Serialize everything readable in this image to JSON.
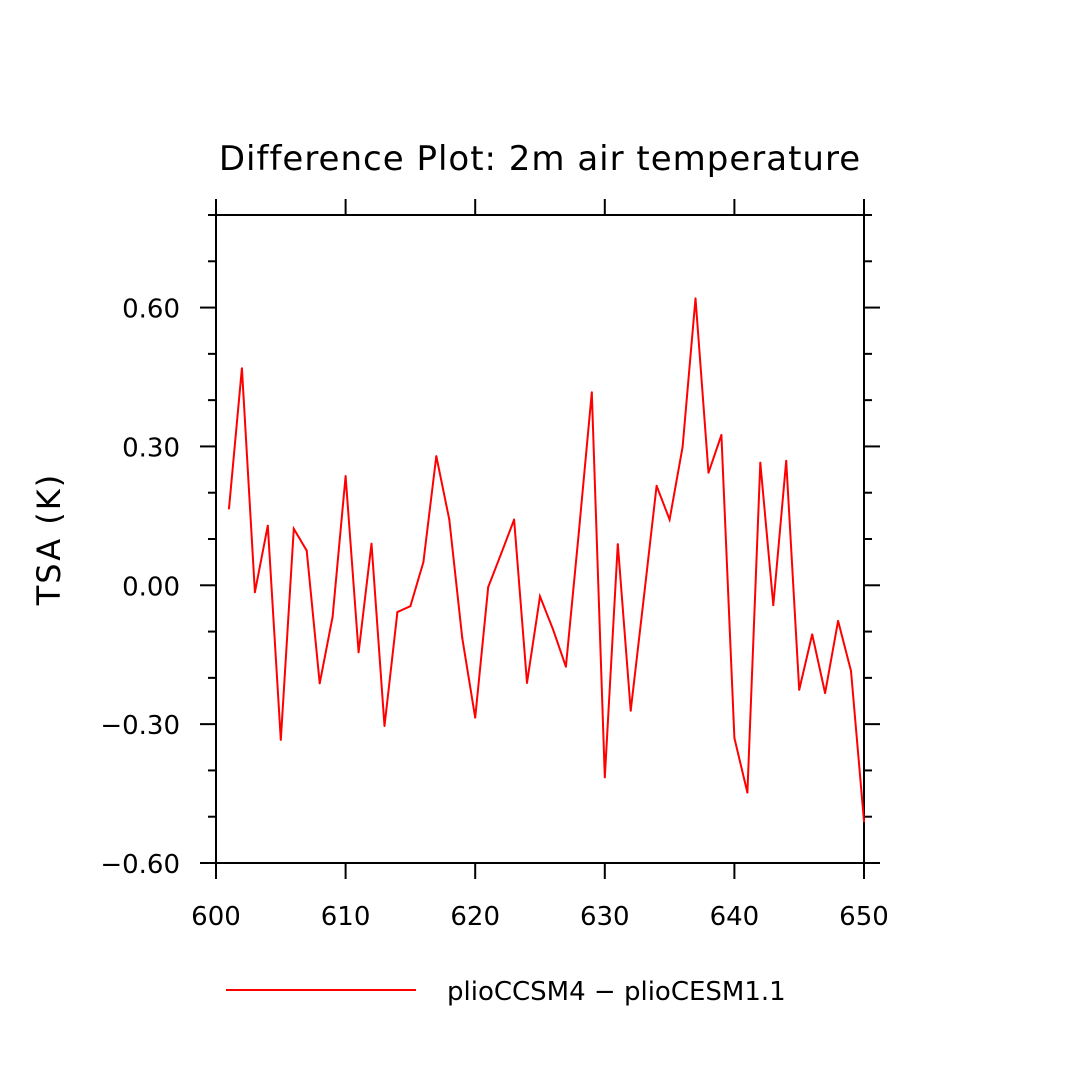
{
  "chart_data": {
    "type": "line",
    "title": "Difference Plot: 2m air temperature",
    "xlabel": "",
    "ylabel": "TSA  (K)",
    "xlim": [
      600,
      650
    ],
    "ylim": [
      -0.6,
      0.8
    ],
    "x_ticks": [
      600,
      610,
      620,
      630,
      640,
      650
    ],
    "x_tick_labels": [
      "600",
      "610",
      "620",
      "630",
      "640",
      "650"
    ],
    "y_ticks": [
      -0.6,
      -0.3,
      0.0,
      0.3,
      0.6
    ],
    "y_tick_labels": [
      "−0.60",
      "−0.30",
      "0.00",
      "0.30",
      "0.60"
    ],
    "grid": false,
    "legend_position": "bottom",
    "series": [
      {
        "name": "plioCCSM4 − plioCESM1.1",
        "color": "#ff0000",
        "x": [
          601,
          602,
          603,
          604,
          605,
          606,
          607,
          608,
          609,
          610,
          611,
          612,
          613,
          614,
          615,
          616,
          617,
          618,
          619,
          620,
          621,
          622,
          623,
          624,
          625,
          626,
          627,
          628,
          629,
          630,
          631,
          632,
          633,
          634,
          635,
          636,
          637,
          638,
          639,
          640,
          641,
          642,
          643,
          644,
          645,
          646,
          647,
          648,
          649,
          650
        ],
        "values": [
          0.166,
          0.469,
          -0.015,
          0.129,
          -0.334,
          0.122,
          0.075,
          -0.212,
          -0.068,
          0.236,
          -0.145,
          0.09,
          -0.304,
          -0.058,
          -0.045,
          0.05,
          0.279,
          0.142,
          -0.113,
          -0.286,
          -0.004,
          0.068,
          0.142,
          -0.211,
          -0.024,
          -0.095,
          -0.176,
          0.116,
          0.417,
          -0.415,
          0.089,
          -0.271,
          -0.029,
          0.215,
          0.142,
          0.299,
          0.62,
          0.243,
          0.325,
          -0.33,
          -0.448,
          0.265,
          -0.043,
          0.269,
          -0.226,
          -0.106,
          -0.233,
          -0.077,
          -0.185,
          -0.51
        ]
      }
    ]
  }
}
